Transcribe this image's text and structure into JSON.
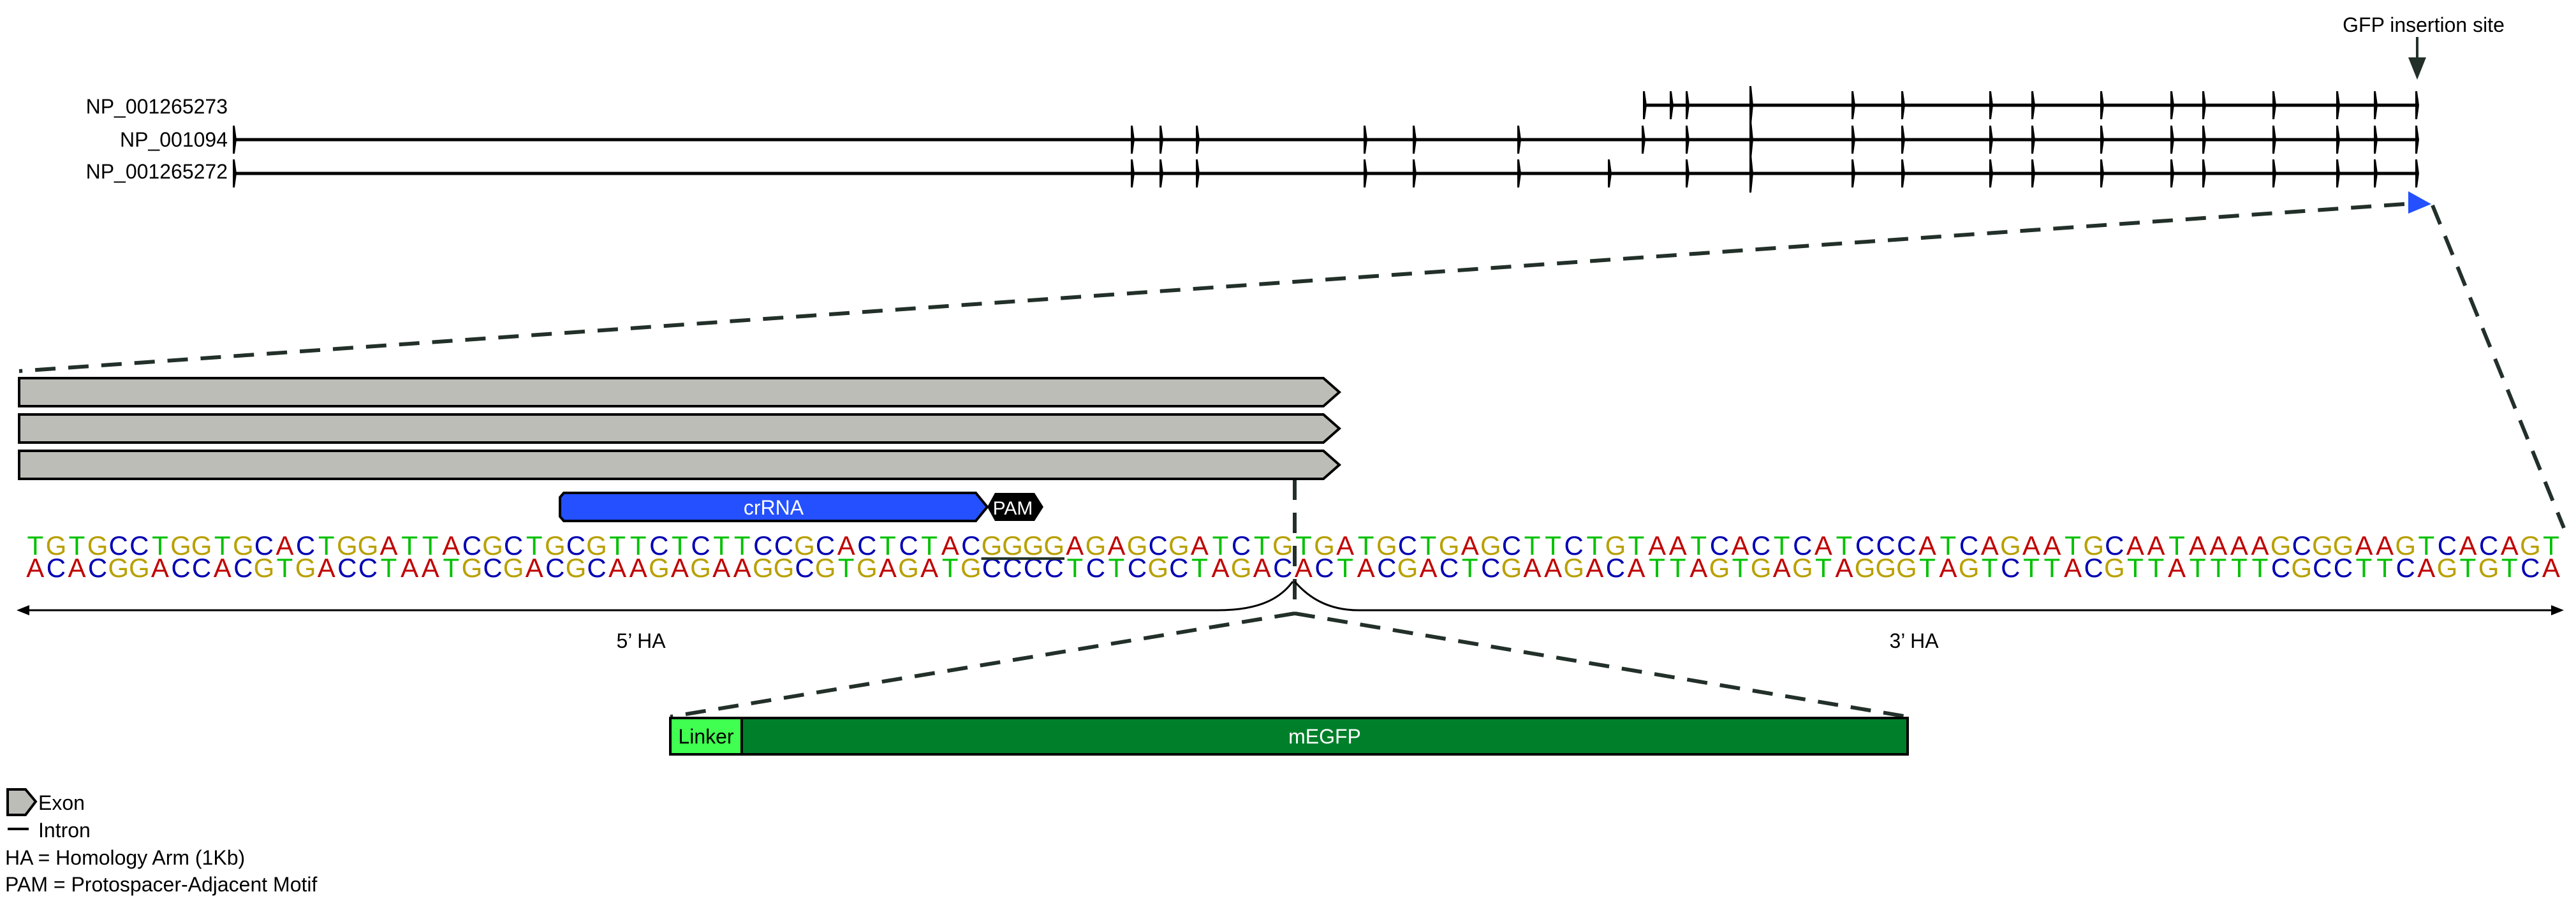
{
  "transcripts": [
    "NP_001265273",
    "NP_001094",
    "NP_001265272"
  ],
  "insertion_label": "GFP insertion site",
  "crrna_label": "crRNA",
  "pam_label": "PAM",
  "sequence": {
    "top": "TGTGCCTGGTGCACTGGATTACGCTGCGTTCTCTTCCGCACTCTACGGGGAGAGCGATCTGTGATGCTGAGCTTCTGTAATCACTCATCCCATCAGAATGCAATAAAAGCGGAAGTCACAGT",
    "bottom": "ACACGGACCACGTGACCTAATGCGACGCAAGAGAAGGCGTGAGATGCCCCTCTCGCTAGACACTACGACTCGAAGACATTAGTGAGTAGGGTAGTCTTACGTTATTTTCGCCTTCAGTGTCA"
  },
  "nucleotide_colors": {
    "A": "#c00000",
    "C": "#0000b4",
    "G": "#b8a000",
    "T": "#00c000"
  },
  "ha5_label": "5’ HA",
  "ha3_label": "3’ HA",
  "linker_label": "Linker",
  "megfp_label": "mEGFP",
  "colors": {
    "crrna": "#2450ff",
    "exon": "#bdbdb8",
    "linker": "#40ff50",
    "megfp": "#007f2a",
    "insertion_marker": "#2450ff"
  },
  "legend": {
    "exon": "Exon",
    "intron": "Intron",
    "ha": "HA = Homology Arm (1Kb)",
    "pam": "PAM = Protospacer-Adjacent Motif"
  }
}
